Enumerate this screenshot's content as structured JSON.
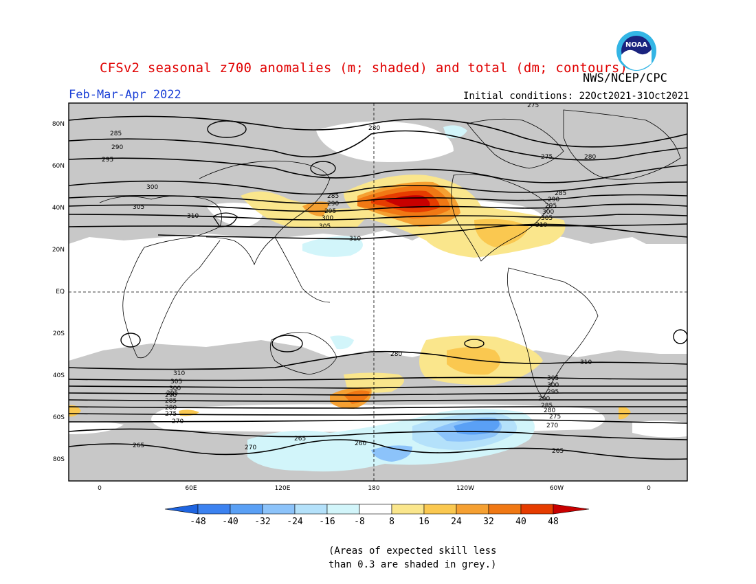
{
  "header": {
    "title": "CFSv2 seasonal z700 anomalies (m; shaded) and total (dm; contours)",
    "agency": "NWS/NCEP/CPC",
    "period": "Feb-Mar-Apr 2022",
    "initial_conditions": "Initial conditions: 22Oct2021-31Oct2021",
    "logo_text": "NOAA"
  },
  "axes": {
    "lat_labels": [
      "80N",
      "60N",
      "40N",
      "20N",
      "EQ",
      "20S",
      "40S",
      "60S",
      "80S"
    ],
    "lon_labels": [
      "0",
      "60E",
      "120E",
      "180",
      "120W",
      "60W",
      "0"
    ]
  },
  "colorbar": {
    "ticks": [
      "-48",
      "-40",
      "-32",
      "-24",
      "-16",
      "-8",
      "8",
      "16",
      "24",
      "32",
      "40",
      "48"
    ],
    "colors": [
      "#1e64e0",
      "#3c82f0",
      "#5aa0f5",
      "#8cc3fa",
      "#b4e1fa",
      "#d2f5fa",
      "#ffffff",
      "#fae68c",
      "#fac850",
      "#f5a032",
      "#f07814",
      "#e63c00",
      "#c80000"
    ]
  },
  "map": {
    "skill_mask_color": "#c8c8c8",
    "contour_labels": [
      "280",
      "285",
      "290",
      "295",
      "300",
      "305",
      "310",
      "275",
      "280",
      "285",
      "290",
      "295",
      "300",
      "305",
      "310",
      "285",
      "290",
      "295",
      "300",
      "305",
      "310",
      "275",
      "280",
      "310",
      "305",
      "300",
      "295",
      "290",
      "285",
      "280",
      "275",
      "270",
      "265",
      "310",
      "305",
      "300",
      "295",
      "290",
      "285",
      "280",
      "275",
      "270",
      "265",
      "265",
      "270",
      "260"
    ]
  },
  "footnote": {
    "line1": "(Areas of expected skill less",
    "line2": "than 0.3 are shaded in grey.)"
  }
}
